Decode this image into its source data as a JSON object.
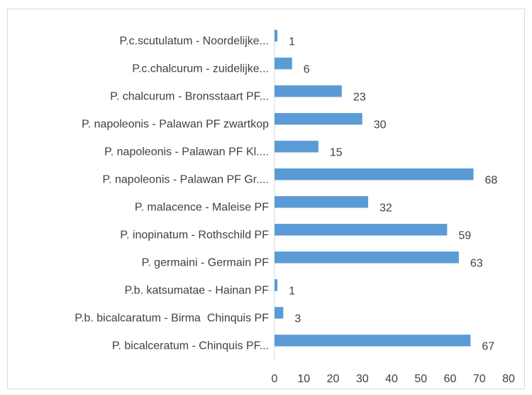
{
  "chart_data": {
    "type": "bar",
    "orientation": "horizontal",
    "categories": [
      "P.c.scutulatum - Noordelijke...",
      "P.c.chalcurum - zuidelijke...",
      "P. chalcurum - Bronsstaart PF...",
      "P. napoleonis - Palawan PF zwartkop",
      "P. napoleonis - Palawan PF Kl....",
      "P. napoleonis - Palawan PF Gr....",
      "P. malacence - Maleise PF",
      "P. inopinatum - Rothschild PF",
      "P. germaini - Germain PF",
      "P.b. katsumatae - Hainan PF",
      "P.b. bicalcaratum - Birma  Chinquis PF",
      "P. bicalceratum - Chinquis PF..."
    ],
    "values": [
      1,
      6,
      23,
      30,
      15,
      68,
      32,
      59,
      63,
      1,
      3,
      67
    ],
    "color": "#5b9bd5",
    "xlim": [
      0,
      80
    ],
    "xticks": [
      0,
      10,
      20,
      30,
      40,
      50,
      60,
      70,
      80
    ],
    "grid": false
  }
}
